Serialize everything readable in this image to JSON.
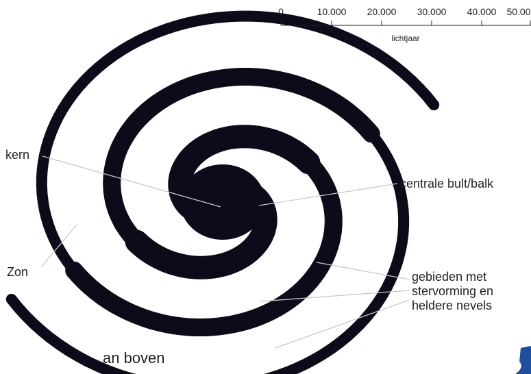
{
  "scale": {
    "ticks": [
      "0",
      "10.000",
      "20.000",
      "30.000",
      "40.000",
      "50.00"
    ],
    "unit": "lichtjaar"
  },
  "labels": {
    "core": "kern",
    "bulge": "centrale bult/balk",
    "sun": "Zon",
    "star_forming": [
      "gebieden met",
      "stervorming en",
      "heldere nevels"
    ]
  },
  "caption": "an boven"
}
